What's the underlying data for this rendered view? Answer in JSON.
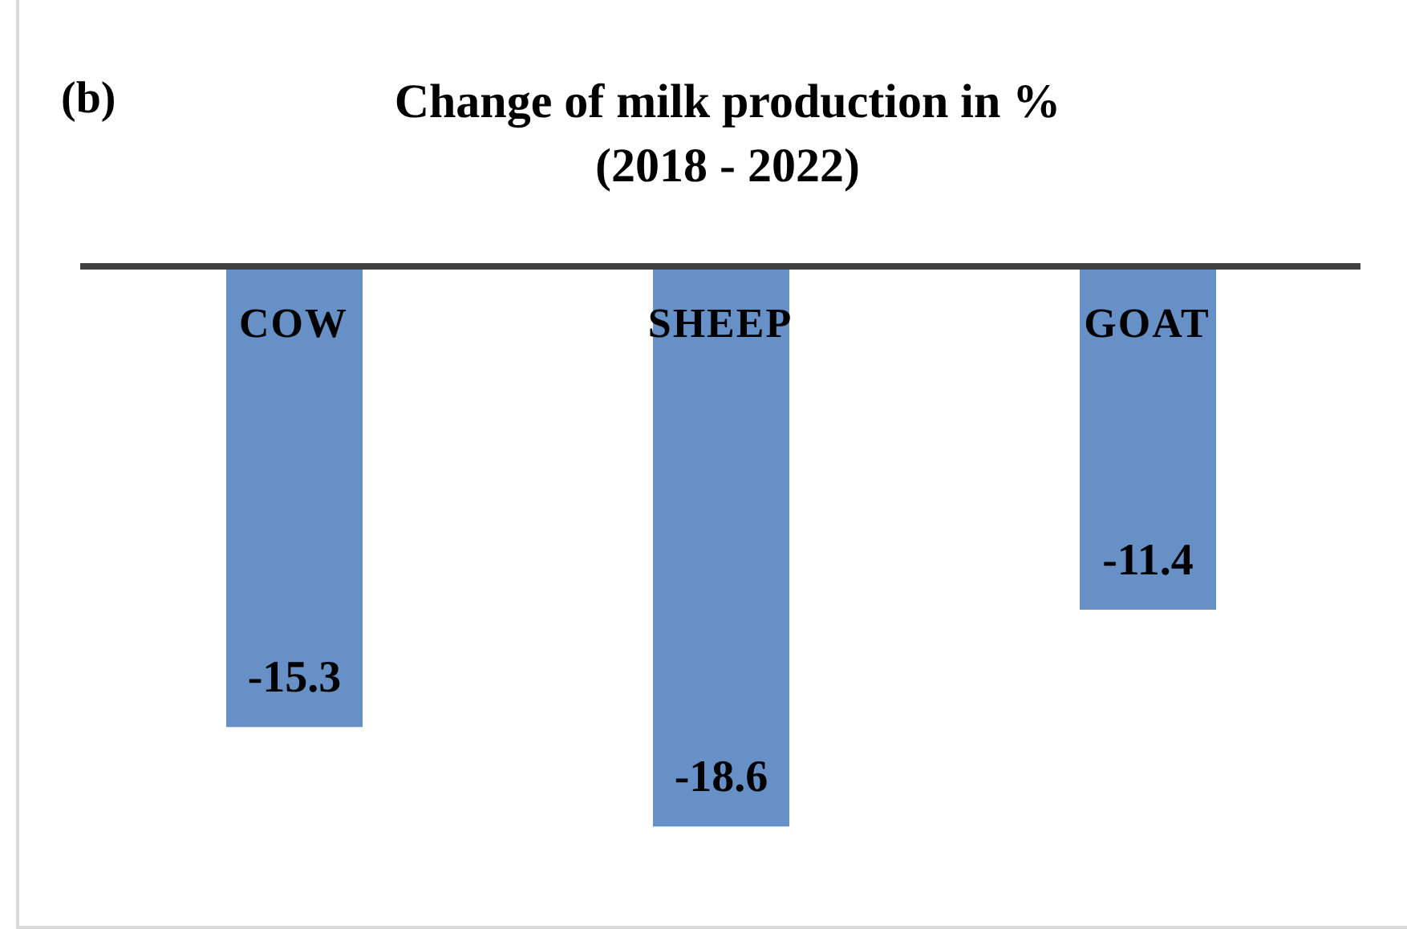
{
  "chart_data": {
    "type": "bar",
    "title": "Change of milk production in %",
    "subtitle": "(2018 - 2022)",
    "annotations": [
      "(b)"
    ],
    "categories": [
      "COW",
      "SHEEP",
      "GOAT"
    ],
    "values": [
      -15.3,
      -18.6,
      -11.4
    ],
    "color": "#6791c6",
    "data_labels": true,
    "grid": false,
    "legend": false
  }
}
